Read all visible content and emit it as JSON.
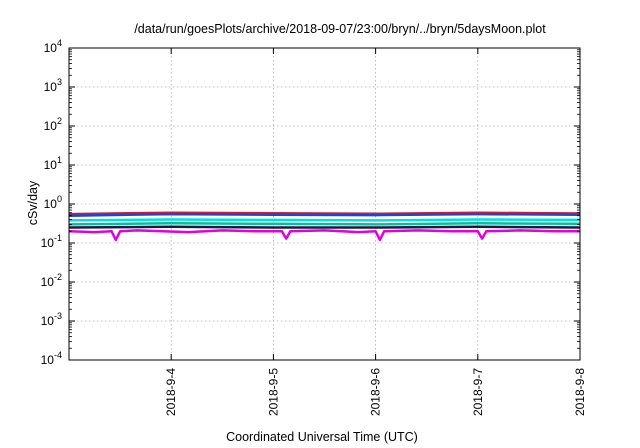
{
  "chart_data": {
    "type": "line",
    "title": "/data/run/goesPlots/archive/2018-09-07/23:00/bryn/../bryn/5daysMoon.plot",
    "xlabel": "Coordinated Universal Time (UTC)",
    "ylabel": "cSv/day",
    "x_range": [
      "2018-09-03T00:00",
      "2018-09-08T00:00"
    ],
    "x_ticks": [
      "2018-9-4",
      "2018-9-5",
      "2018-9-6",
      "2018-9-7",
      "2018-9-8"
    ],
    "ylim": [
      0.0001,
      10000
    ],
    "y_scale": "log",
    "y_tick_exponents": [
      "-4",
      "-3",
      "-2",
      "-1",
      "0",
      "1",
      "2",
      "3",
      "4"
    ],
    "grid": true,
    "legend": "none",
    "series": [
      {
        "color": "#e000e0",
        "x": [
          "2018-09-03T00:00",
          "2018-09-03T06:00",
          "2018-09-03T10:00",
          "2018-09-03T11:00",
          "2018-09-03T12:00",
          "2018-09-03T16:00",
          "2018-09-03T22:00",
          "2018-09-04T04:00",
          "2018-09-04T12:00",
          "2018-09-04T20:00",
          "2018-09-05T02:00",
          "2018-09-05T03:00",
          "2018-09-05T04:00",
          "2018-09-05T12:00",
          "2018-09-05T20:00",
          "2018-09-06T00:00",
          "2018-09-06T01:00",
          "2018-09-06T02:00",
          "2018-09-06T10:00",
          "2018-09-06T18:00",
          "2018-09-07T00:00",
          "2018-09-07T01:00",
          "2018-09-07T02:00",
          "2018-09-07T10:00",
          "2018-09-07T18:00",
          "2018-09-08T00:00"
        ],
        "y": [
          0.2,
          0.19,
          0.2,
          0.12,
          0.2,
          0.21,
          0.2,
          0.19,
          0.21,
          0.2,
          0.2,
          0.13,
          0.2,
          0.21,
          0.19,
          0.2,
          0.12,
          0.2,
          0.21,
          0.2,
          0.2,
          0.13,
          0.2,
          0.21,
          0.2,
          0.2
        ]
      },
      {
        "color": "#1a1a40",
        "x": [
          "2018-09-03T00:00",
          "2018-09-04T00:00",
          "2018-09-05T00:00",
          "2018-09-06T00:00",
          "2018-09-07T00:00",
          "2018-09-08T00:00"
        ],
        "y": [
          0.25,
          0.26,
          0.25,
          0.25,
          0.26,
          0.25
        ]
      },
      {
        "color": "#00c0a0",
        "x": [
          "2018-09-03T00:00",
          "2018-09-04T00:00",
          "2018-09-05T00:00",
          "2018-09-06T00:00",
          "2018-09-07T00:00",
          "2018-09-08T00:00"
        ],
        "y": [
          0.3,
          0.32,
          0.31,
          0.3,
          0.32,
          0.31
        ]
      },
      {
        "color": "#00e0e0",
        "x": [
          "2018-09-03T00:00",
          "2018-09-04T00:00",
          "2018-09-05T00:00",
          "2018-09-06T00:00",
          "2018-09-07T00:00",
          "2018-09-08T00:00"
        ],
        "y": [
          0.38,
          0.4,
          0.39,
          0.38,
          0.4,
          0.39
        ]
      },
      {
        "color": "#d02020",
        "x": [
          "2018-09-03T00:00",
          "2018-09-04T00:00",
          "2018-09-05T00:00",
          "2018-09-06T00:00",
          "2018-09-07T00:00",
          "2018-09-08T00:00"
        ],
        "y": [
          0.55,
          0.6,
          0.58,
          0.56,
          0.6,
          0.57
        ]
      },
      {
        "color": "#2040e0",
        "x": [
          "2018-09-03T00:00",
          "2018-09-04T00:00",
          "2018-09-05T00:00",
          "2018-09-06T00:00",
          "2018-09-07T00:00",
          "2018-09-08T00:00"
        ],
        "y": [
          0.5,
          0.55,
          0.53,
          0.52,
          0.55,
          0.53
        ]
      }
    ]
  }
}
